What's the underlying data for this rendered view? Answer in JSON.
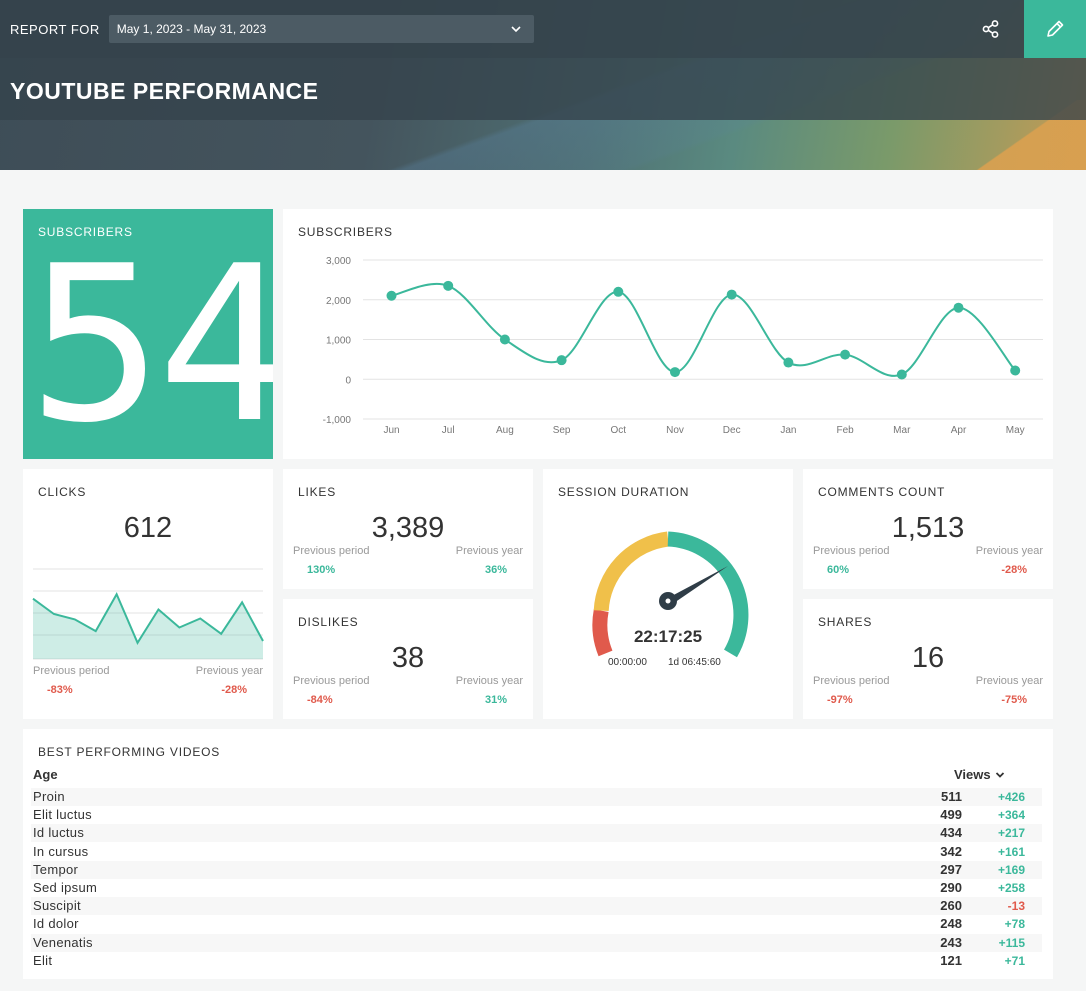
{
  "header": {
    "report_for_label": "REPORT FOR",
    "date_range": "May 1, 2023 - May 31, 2023",
    "title": "YOUTUBE PERFORMANCE"
  },
  "icons": {
    "share": "share-icon",
    "edit": "pencil-icon",
    "dropdown": "chevron-down-icon"
  },
  "colors": {
    "accent": "#3bb89b",
    "negative": "#e05a4c",
    "warning": "#f0c04a",
    "header": "#34424b"
  },
  "subscribers_big": {
    "title": "SUBSCRIBERS",
    "value": "54"
  },
  "subscribers_chart": {
    "title": "SUBSCRIBERS",
    "y_ticks": [
      "3,000",
      "2,000",
      "1,000",
      "0",
      "-1,000"
    ]
  },
  "chart_data": [
    {
      "type": "line",
      "title": "SUBSCRIBERS",
      "categories": [
        "Jun",
        "Jul",
        "Aug",
        "Sep",
        "Oct",
        "Nov",
        "Dec",
        "Jan",
        "Feb",
        "Mar",
        "Apr",
        "May"
      ],
      "values": [
        2100,
        2350,
        1000,
        480,
        2200,
        180,
        2130,
        420,
        620,
        120,
        1800,
        220
      ],
      "ylim": [
        -1000,
        3000
      ],
      "grid": true
    },
    {
      "type": "area",
      "title": "CLICKS",
      "values": [
        67,
        50,
        44,
        31,
        72,
        18,
        55,
        35,
        45,
        28,
        63,
        20
      ],
      "ylim": [
        0,
        100
      ],
      "grid": true
    }
  ],
  "clicks": {
    "title": "CLICKS",
    "value": "612",
    "prev_period_label": "Previous period",
    "prev_period": "-83%",
    "prev_year_label": "Previous year",
    "prev_year": "-28%"
  },
  "likes": {
    "title": "LIKES",
    "value": "3,389",
    "prev_period_label": "Previous period",
    "prev_period": "130%",
    "prev_year_label": "Previous year",
    "prev_year": "36%"
  },
  "dislikes": {
    "title": "DISLIKES",
    "value": "38",
    "prev_period_label": "Previous period",
    "prev_period": "-84%",
    "prev_year_label": "Previous year",
    "prev_year": "31%"
  },
  "session": {
    "title": "SESSION DURATION",
    "value": "22:17:25",
    "min_label": "00:00:00",
    "max_label": "1d 06:45:60",
    "level": 0.72
  },
  "comments": {
    "title": "COMMENTS COUNT",
    "value": "1,513",
    "prev_period_label": "Previous period",
    "prev_period": "60%",
    "prev_year_label": "Previous year",
    "prev_year": "-28%"
  },
  "shares": {
    "title": "SHARES",
    "value": "16",
    "prev_period_label": "Previous period",
    "prev_period": "-97%",
    "prev_year_label": "Previous year",
    "prev_year": "-75%"
  },
  "videos": {
    "title": "BEST PERFORMING VIDEOS",
    "col_name": "Age",
    "col_views": "Views",
    "rows": [
      {
        "name": "Proin",
        "views": "511",
        "delta": "+426"
      },
      {
        "name": "Elit luctus",
        "views": "499",
        "delta": "+364"
      },
      {
        "name": "Id luctus",
        "views": "434",
        "delta": "+217"
      },
      {
        "name": "In cursus",
        "views": "342",
        "delta": "+161"
      },
      {
        "name": "Tempor",
        "views": "297",
        "delta": "+169"
      },
      {
        "name": "Sed ipsum",
        "views": "290",
        "delta": "+258"
      },
      {
        "name": "Suscipit",
        "views": "260",
        "delta": "-13"
      },
      {
        "name": "Id dolor",
        "views": "248",
        "delta": "+78"
      },
      {
        "name": "Venenatis",
        "views": "243",
        "delta": "+115"
      },
      {
        "name": "Elit",
        "views": "121",
        "delta": "+71"
      }
    ]
  }
}
